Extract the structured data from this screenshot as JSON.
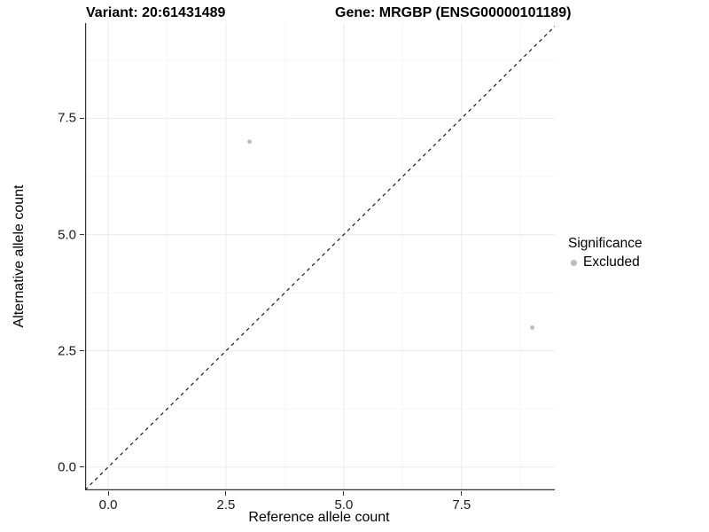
{
  "chart_data": {
    "type": "scatter",
    "title_variant": "Variant: 20:61431489",
    "title_gene": "Gene: MRGBP (ENSG00000101189)",
    "xlabel": "Reference allele count",
    "ylabel": "Alternative allele count",
    "xlim": [
      -0.49,
      9.46
    ],
    "ylim": [
      -0.5,
      9.55
    ],
    "x_major_ticks": [
      0,
      2.5,
      5,
      7.5
    ],
    "x_tick_labels": [
      "0.0",
      "2.5",
      "5.0",
      "7.5"
    ],
    "y_major_ticks": [
      0,
      2.5,
      5,
      7.5
    ],
    "y_tick_labels": [
      "0.0",
      "2.5",
      "5.0",
      "7.5"
    ],
    "x_minor_ticks": [
      1.25,
      3.75,
      6.25,
      8.75
    ],
    "y_minor_ticks": [
      1.25,
      3.75,
      6.25,
      8.75
    ],
    "grid": true,
    "points": [
      {
        "x": 3,
        "y": 7,
        "significance": "Excluded"
      },
      {
        "x": 9,
        "y": 3,
        "significance": "Excluded"
      }
    ],
    "identity_line": {
      "from": [
        -0.6,
        -0.6
      ],
      "to": [
        9.7,
        9.7
      ],
      "style": "dashed"
    },
    "legend": {
      "title": "Significance",
      "position": "right",
      "entries": [
        {
          "label": "Excluded",
          "color": "#bcbcbc",
          "marker": "circle"
        }
      ]
    },
    "colors": {
      "point": "#bcbcbc",
      "axis_line": "#333333",
      "grid_major": "#ebebeb",
      "grid_minor": "#f5f5f5",
      "dashed_line": "#1a1a1a",
      "background": "#ffffff"
    }
  }
}
